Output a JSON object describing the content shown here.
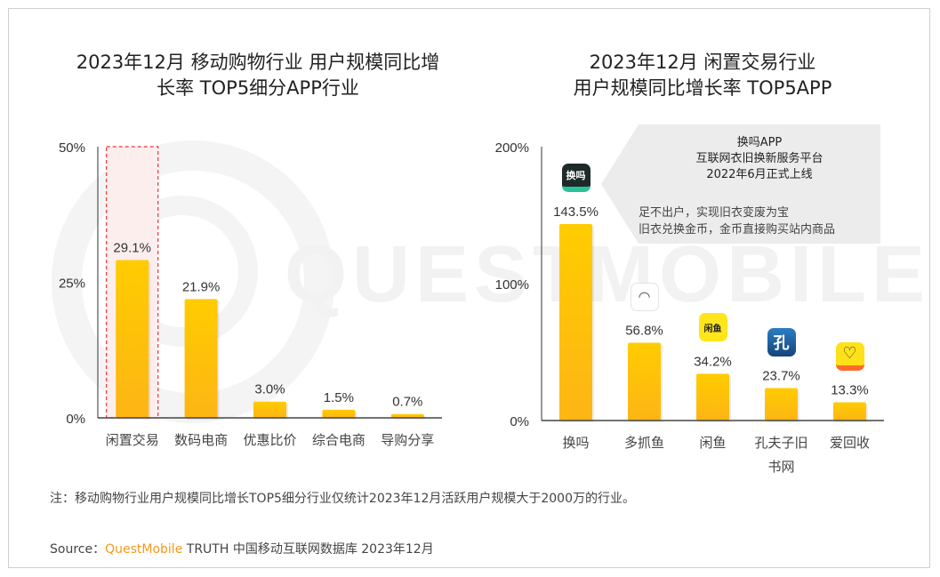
{
  "watermark": "QUESTMOBILE",
  "left_chart_title_line1": "2023年12月 移动购物行业 用户规模同比增",
  "left_chart_title_line2": "长率 TOP5细分APP行业",
  "right_chart_title_line1": "2023年12月 闲置交易行业",
  "right_chart_title_line2": "用户规模同比增长率 TOP5APP",
  "callout": {
    "head": [
      "换吗APP",
      "互联网衣旧换新服务平台",
      "2022年6月正式上线"
    ],
    "body": [
      "足不出户，实现旧衣变废为宝",
      "旧衣兑换金币，金币直接购买站内商品"
    ]
  },
  "note": "注：移动购物行业用户规模同比增长TOP5细分行业仅统计2023年12月活跃用户规模大于2000万的行业。",
  "source": {
    "prefix": "Source：",
    "brand": "QuestMobile",
    "suffix": " TRUTH 中国移动互联网数据库 2023年12月"
  },
  "colors": {
    "bar_top": "#ffcc00",
    "bar_bottom": "#fdb515",
    "highlight_border": "#ee3333",
    "highlight_fill": "#fdeeee",
    "brand": "#f29a1c"
  },
  "chart_data": [
    {
      "type": "bar",
      "title": "2023年12月 移动购物行业 用户规模同比增长率 TOP5细分APP行业",
      "xlabel": "",
      "ylabel": "",
      "categories": [
        "闲置交易",
        "数码电商",
        "优惠比价",
        "综合电商",
        "导购分享"
      ],
      "values": [
        29.1,
        21.9,
        3.0,
        1.5,
        0.7
      ],
      "value_labels": [
        "29.1%",
        "21.9%",
        "3.0%",
        "1.5%",
        "0.7%"
      ],
      "ylim": [
        0,
        50
      ],
      "yticks": [
        0,
        25,
        50
      ],
      "ytick_labels": [
        "0%",
        "25%",
        "50%"
      ],
      "highlighted_category": "闲置交易",
      "grid": false,
      "legend": "none"
    },
    {
      "type": "bar",
      "title": "2023年12月 闲置交易行业 用户规模同比增长率 TOP5APP",
      "xlabel": "",
      "ylabel": "",
      "categories": [
        "换吗",
        "多抓鱼",
        "闲鱼",
        "孔夫子旧书网",
        "爱回收"
      ],
      "category_lines": [
        [
          "换吗"
        ],
        [
          "多抓鱼"
        ],
        [
          "闲鱼"
        ],
        [
          "孔夫子旧",
          "书网"
        ],
        [
          "爱回收"
        ]
      ],
      "values": [
        143.5,
        56.8,
        34.2,
        23.7,
        13.3
      ],
      "value_labels": [
        "143.5%",
        "56.8%",
        "34.2%",
        "23.7%",
        "13.3%"
      ],
      "icons": [
        "huanma-app-icon",
        "duozhuayu-app-icon",
        "xianyu-app-icon",
        "kongfuzi-app-icon",
        "aihuishou-app-icon"
      ],
      "icon_glyphs": [
        "换吗",
        "◠",
        "闲鱼",
        "孔",
        "♡"
      ],
      "ylim": [
        0,
        200
      ],
      "yticks": [
        0,
        100,
        200
      ],
      "ytick_labels": [
        "0%",
        "100%",
        "200%"
      ],
      "grid": false,
      "legend": "none"
    }
  ]
}
